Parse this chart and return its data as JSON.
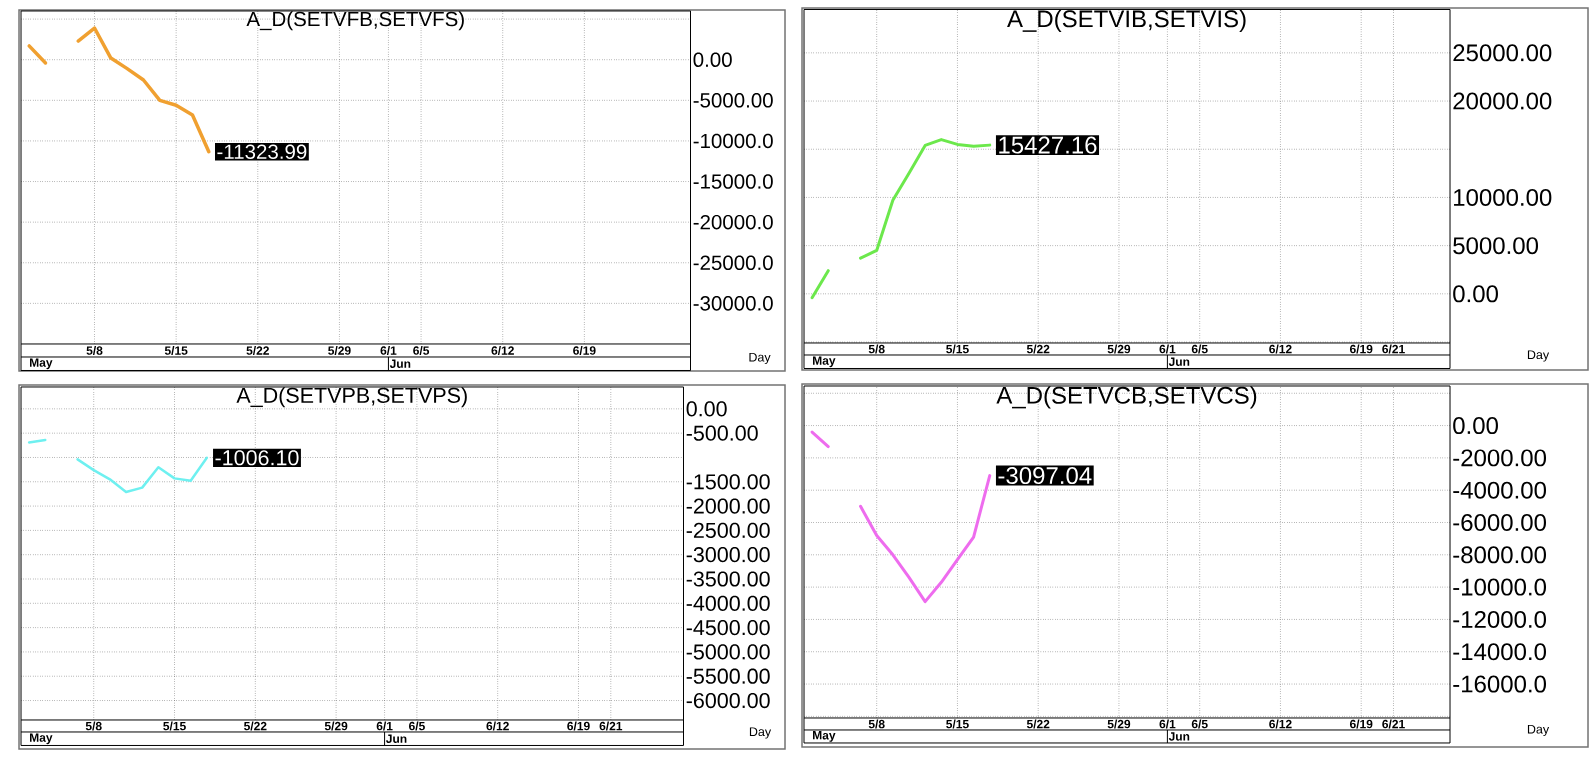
{
  "chart_data": [
    {
      "type": "line",
      "title": "A_D(SETVFB,SETVFS)",
      "xlabel": "Day",
      "categories": [
        null,
        null,
        null,
        null,
        "5/8",
        null,
        null,
        null,
        null,
        "5/15",
        null,
        null,
        null,
        null,
        "5/22",
        null,
        null,
        null,
        null,
        "5/29",
        null,
        null,
        "6/1",
        null,
        "6/5",
        null,
        null,
        null,
        null,
        "6/12",
        null,
        null,
        null,
        null,
        "6/19",
        null,
        null,
        null,
        null,
        null,
        null
      ],
      "values": [
        1700,
        -400,
        null,
        2300,
        3900,
        200,
        -1100,
        -2500,
        -5000,
        -5600,
        -6800,
        -11323.99,
        null,
        null,
        null,
        null,
        null,
        null,
        null,
        null,
        null,
        null,
        null,
        null,
        null,
        null,
        null,
        null,
        null,
        null,
        null,
        null,
        null,
        null,
        null,
        null,
        null,
        null,
        null,
        null,
        null
      ],
      "value_labels": [
        null,
        null,
        null,
        null,
        null,
        null,
        null,
        null,
        null,
        null,
        null,
        "-11323.99",
        null,
        null,
        null,
        null,
        null,
        null,
        null,
        null,
        null,
        null,
        null,
        null,
        null,
        null,
        null,
        null,
        null,
        null,
        null,
        null,
        null,
        null,
        null,
        null,
        null,
        null,
        null,
        null,
        null
      ],
      "color": "#f0a030",
      "ylim": [
        -35000,
        6000
      ],
      "yticks": [
        {
          "value": 5000,
          "label": null
        },
        {
          "value": 0,
          "label": "0.00"
        },
        {
          "value": -5000,
          "label": "-5000.00"
        },
        {
          "value": -10000,
          "label": "-10000.0"
        },
        {
          "value": -15000,
          "label": "-15000.0"
        },
        {
          "value": -20000,
          "label": "-20000.0"
        },
        {
          "value": -25000,
          "label": "-25000.0"
        },
        {
          "value": -30000,
          "label": "-30000.0"
        }
      ],
      "grid": true,
      "annotations": [
        "May",
        "Jun"
      ]
    },
    {
      "type": "line",
      "title": "A_D(SETVIB,SETVIS)",
      "xlabel": "Day",
      "categories": [
        null,
        null,
        null,
        null,
        "5/8",
        null,
        null,
        null,
        null,
        "5/15",
        null,
        null,
        null,
        null,
        "5/22",
        null,
        null,
        null,
        null,
        "5/29",
        null,
        null,
        "6/1",
        null,
        "6/5",
        null,
        null,
        null,
        null,
        "6/12",
        null,
        null,
        null,
        null,
        "6/19",
        null,
        "6/21",
        null,
        null,
        null
      ],
      "values": [
        -400,
        2400,
        null,
        3700,
        4500,
        9700,
        12500,
        15400,
        16000,
        15500,
        15300,
        15427.16,
        null,
        null,
        null,
        null,
        null,
        null,
        null,
        null,
        null,
        null,
        null,
        null,
        null,
        null,
        null,
        null,
        null,
        null,
        null,
        null,
        null,
        null,
        null,
        null,
        null,
        null,
        null,
        null
      ],
      "value_labels": [
        null,
        null,
        null,
        null,
        null,
        null,
        null,
        null,
        null,
        null,
        null,
        "15427.16",
        null,
        null,
        null,
        null,
        null,
        null,
        null,
        null,
        null,
        null,
        null,
        null,
        null,
        null,
        null,
        null,
        null,
        null,
        null,
        null,
        null,
        null,
        null,
        null,
        null,
        null,
        null,
        null
      ],
      "color": "#6ce84c",
      "ylim": [
        -5100,
        29500
      ],
      "yticks": [
        {
          "value": 25000,
          "label": "25000.00"
        },
        {
          "value": 20000,
          "label": "20000.00"
        },
        {
          "value": 15000,
          "label": null
        },
        {
          "value": 10000,
          "label": "10000.00"
        },
        {
          "value": 5000,
          "label": "5000.00"
        },
        {
          "value": 0,
          "label": "0.00"
        },
        {
          "value": -5000,
          "label": null
        }
      ],
      "grid": true,
      "annotations": [
        "May",
        "Jun"
      ]
    },
    {
      "type": "line",
      "title": "A_D(SETVPB,SETVPS)",
      "xlabel": "Day",
      "categories": [
        null,
        null,
        null,
        null,
        "5/8",
        null,
        null,
        null,
        null,
        "5/15",
        null,
        null,
        null,
        null,
        "5/22",
        null,
        null,
        null,
        null,
        "5/29",
        null,
        null,
        "6/1",
        null,
        "6/5",
        null,
        null,
        null,
        null,
        "6/12",
        null,
        null,
        null,
        null,
        "6/19",
        null,
        "6/21",
        null,
        null,
        null,
        null
      ],
      "values": [
        -690,
        -640,
        null,
        -1040,
        -1260,
        -1450,
        -1710,
        -1620,
        -1200,
        -1430,
        -1480,
        -1006.1,
        null,
        null,
        null,
        null,
        null,
        null,
        null,
        null,
        null,
        null,
        null,
        null,
        null,
        null,
        null,
        null,
        null,
        null,
        null,
        null,
        null,
        null,
        null,
        null,
        null,
        null,
        null,
        null,
        null
      ],
      "value_labels": [
        null,
        null,
        null,
        null,
        null,
        null,
        null,
        null,
        null,
        null,
        null,
        "-1006.10",
        null,
        null,
        null,
        null,
        null,
        null,
        null,
        null,
        null,
        null,
        null,
        null,
        null,
        null,
        null,
        null,
        null,
        null,
        null,
        null,
        null,
        null,
        null,
        null,
        null,
        null,
        null,
        null,
        null
      ],
      "color": "#6ef0f0",
      "ylim": [
        -6400,
        450
      ],
      "yticks": [
        {
          "value": 0,
          "label": "0.00"
        },
        {
          "value": -500,
          "label": "-500.00"
        },
        {
          "value": -1000,
          "label": null
        },
        {
          "value": -1500,
          "label": "-1500.00"
        },
        {
          "value": -2000,
          "label": "-2000.00"
        },
        {
          "value": -2500,
          "label": "-2500.00"
        },
        {
          "value": -3000,
          "label": "-3000.00"
        },
        {
          "value": -3500,
          "label": "-3500.00"
        },
        {
          "value": -4000,
          "label": "-4000.00"
        },
        {
          "value": -4500,
          "label": "-4500.00"
        },
        {
          "value": -5000,
          "label": "-5000.00"
        },
        {
          "value": -5500,
          "label": "-5500.00"
        },
        {
          "value": -6000,
          "label": "-6000.00"
        }
      ],
      "grid": true,
      "annotations": [
        "May",
        "Jun"
      ]
    },
    {
      "type": "line",
      "title": "A_D(SETVCB,SETVCS)",
      "xlabel": "Day",
      "categories": [
        null,
        null,
        null,
        null,
        "5/8",
        null,
        null,
        null,
        null,
        "5/15",
        null,
        null,
        null,
        null,
        "5/22",
        null,
        null,
        null,
        null,
        "5/29",
        null,
        null,
        "6/1",
        null,
        "6/5",
        null,
        null,
        null,
        null,
        "6/12",
        null,
        null,
        null,
        null,
        "6/19",
        null,
        "6/21",
        null,
        null,
        null
      ],
      "values": [
        -400,
        -1300,
        null,
        -5000,
        -6800,
        -8000,
        -9400,
        -10900,
        -9700,
        -8300,
        -6900,
        -3097.04,
        null,
        null,
        null,
        null,
        null,
        null,
        null,
        null,
        null,
        null,
        null,
        null,
        null,
        null,
        null,
        null,
        null,
        null,
        null,
        null,
        null,
        null,
        null,
        null,
        null,
        null,
        null,
        null
      ],
      "value_labels": [
        null,
        null,
        null,
        null,
        null,
        null,
        null,
        null,
        null,
        null,
        null,
        "-3097.04",
        null,
        null,
        null,
        null,
        null,
        null,
        null,
        null,
        null,
        null,
        null,
        null,
        null,
        null,
        null,
        null,
        null,
        null,
        null,
        null,
        null,
        null,
        null,
        null,
        null,
        null,
        null,
        null
      ],
      "color": "#ee6cee",
      "ylim": [
        -18100,
        2450
      ],
      "yticks": [
        {
          "value": 2000,
          "label": null
        },
        {
          "value": 0,
          "label": "0.00"
        },
        {
          "value": -2000,
          "label": "-2000.00"
        },
        {
          "value": -4000,
          "label": "-4000.00"
        },
        {
          "value": -6000,
          "label": "-6000.00"
        },
        {
          "value": -8000,
          "label": "-8000.00"
        },
        {
          "value": -10000,
          "label": "-10000.0"
        },
        {
          "value": -12000,
          "label": "-12000.0"
        },
        {
          "value": -14000,
          "label": "-14000.0"
        },
        {
          "value": -16000,
          "label": "-16000.0"
        },
        {
          "value": -18000,
          "label": null
        }
      ],
      "grid": true,
      "annotations": [
        "May",
        "Jun"
      ]
    }
  ]
}
